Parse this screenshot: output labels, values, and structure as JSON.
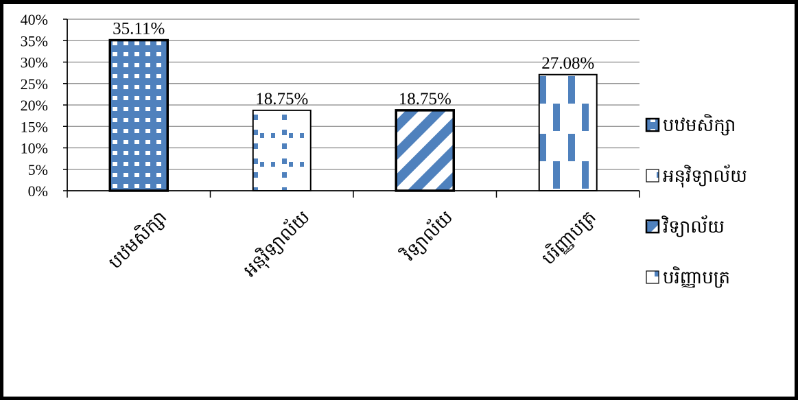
{
  "chart_data": {
    "type": "bar",
    "categories": [
      "បឋមសិក្សា",
      "អនុវិទ្យាល័យ",
      "វិទ្យាល័យ",
      "បរិញ្ញាបត្រ"
    ],
    "values": [
      35.11,
      18.75,
      18.75,
      27.08
    ],
    "data_labels": [
      "35.11%",
      "18.75%",
      "18.75%",
      "27.08%"
    ],
    "y_ticks": [
      "0%",
      "5%",
      "10%",
      "15%",
      "20%",
      "25%",
      "30%",
      "35%",
      "40%"
    ],
    "ylim": [
      0,
      40
    ],
    "grid": true,
    "legend_position": "right",
    "legend": [
      "បឋមសិក្សា",
      "អនុវិទ្យាល័យ",
      "វិទ្យាល័យ",
      "បរិញ្ញាបត្រ"
    ],
    "title": "",
    "xlabel": "",
    "ylabel": "",
    "colors": {
      "fill": "#4f81bd",
      "edge": "#000000",
      "grid": "#868686"
    }
  }
}
